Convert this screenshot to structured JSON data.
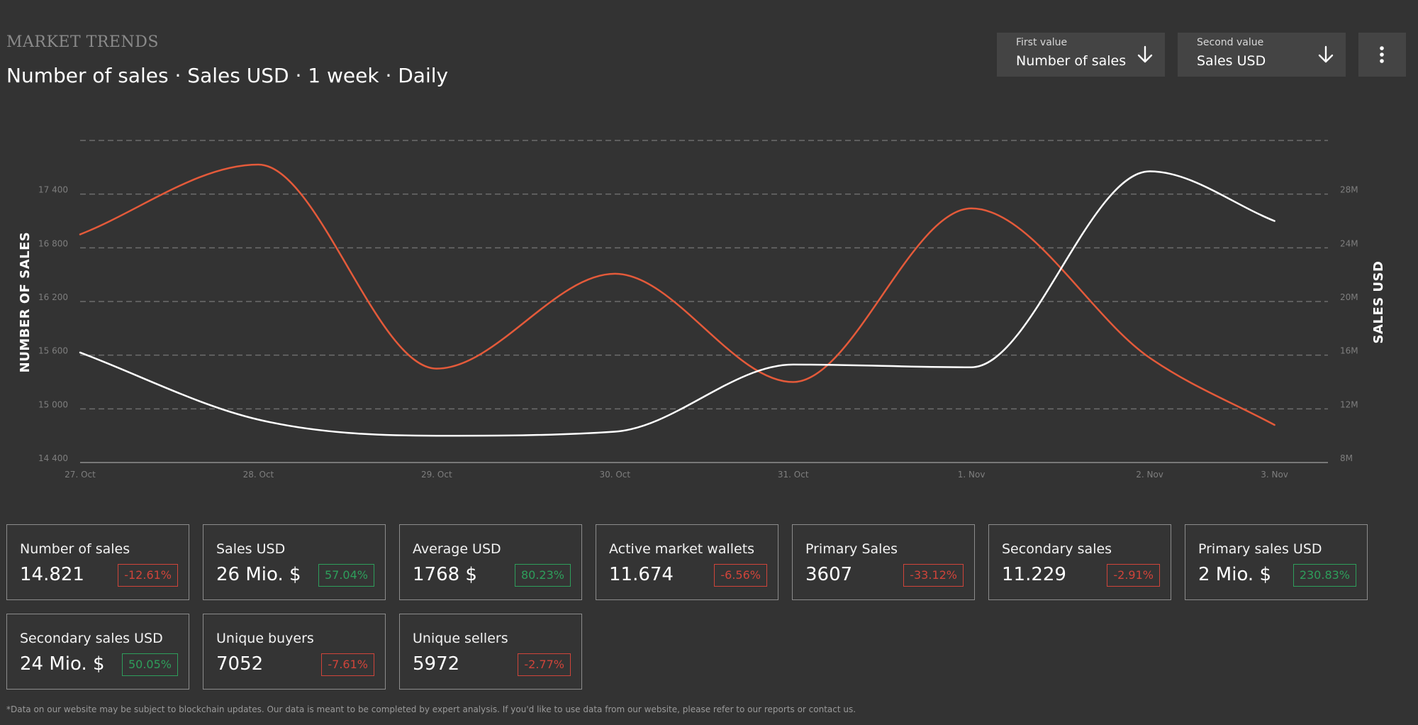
{
  "header": {
    "section_label": "MARKET TRENDS",
    "title": "Number of sales · Sales USD · 1 week · Daily"
  },
  "controls": {
    "first": {
      "label": "First value",
      "value": "Number of sales",
      "icon": "arrow-down-icon"
    },
    "second": {
      "label": "Second value",
      "value": "Sales USD",
      "icon": "arrow-down-icon"
    },
    "menu_icon": "more-vertical-icon"
  },
  "chart_data": {
    "type": "line",
    "x_labels": [
      "27. Oct",
      "28. Oct",
      "29. Oct",
      "30. Oct",
      "31. Oct",
      "1. Nov",
      "2. Nov",
      "3. Nov"
    ],
    "x": [
      0,
      1,
      2,
      3,
      4,
      5,
      6,
      6.7
    ],
    "y_left": {
      "label": "NUMBER OF SALES",
      "ticks": [
        "14 400",
        "15 000",
        "15 600",
        "16 200",
        "16 800",
        "17 400"
      ],
      "tick_values": [
        14400,
        15000,
        15600,
        16200,
        16800,
        17400
      ],
      "range": [
        14400,
        18000
      ]
    },
    "y_right": {
      "label": "SALES USD",
      "ticks": [
        "8M",
        "12M",
        "16M",
        "20M",
        "24M",
        "28M"
      ],
      "tick_values": [
        8,
        12,
        16,
        20,
        24,
        28
      ],
      "range": [
        8,
        32
      ]
    },
    "grid": true,
    "series": [
      {
        "axis": "left",
        "color": "#e45a3a",
        "values": [
          16950,
          17730,
          15450,
          16510,
          15300,
          17240,
          15570,
          14820
        ]
      },
      {
        "axis": "right",
        "color": "#ffffff",
        "values": [
          16.2,
          11.2,
          10.0,
          10.3,
          15.3,
          15.1,
          29.7,
          26.0
        ]
      }
    ]
  },
  "cards": [
    {
      "label": "Number of sales",
      "value": "14.821",
      "change": "-12.61%",
      "trend": "down"
    },
    {
      "label": "Sales USD",
      "value": "26 Mio. $",
      "change": "57.04%",
      "trend": "up"
    },
    {
      "label": "Average USD",
      "value": "1768 $",
      "change": "80.23%",
      "trend": "up"
    },
    {
      "label": "Active market wallets",
      "value": "11.674",
      "change": "-6.56%",
      "trend": "down"
    },
    {
      "label": "Primary Sales",
      "value": "3607",
      "change": "-33.12%",
      "trend": "down"
    },
    {
      "label": "Secondary sales",
      "value": "11.229",
      "change": "-2.91%",
      "trend": "down"
    },
    {
      "label": "Primary sales USD",
      "value": "2 Mio. $",
      "change": "230.83%",
      "trend": "up"
    },
    {
      "label": "Secondary sales USD",
      "value": "24 Mio. $",
      "change": "50.05%",
      "trend": "up"
    },
    {
      "label": "Unique buyers",
      "value": "7052",
      "change": "-7.61%",
      "trend": "down"
    },
    {
      "label": "Unique sellers",
      "value": "5972",
      "change": "-2.77%",
      "trend": "down"
    }
  ],
  "colors": {
    "up": "#2e9e5b",
    "down": "#d0443a"
  },
  "footnote": "*Data on our website may be subject to blockchain updates. Our data is meant to be completed by expert analysis. If you'd like to use data from our website, please refer to our reports or contact us."
}
